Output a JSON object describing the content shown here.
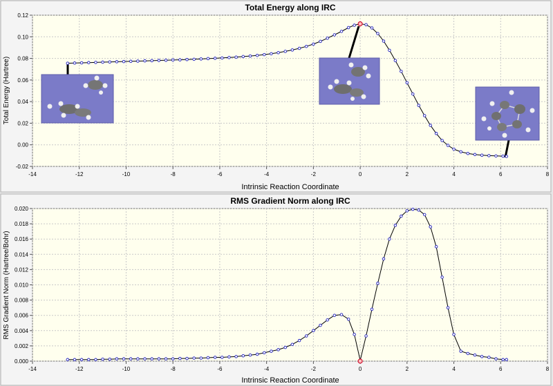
{
  "chart_data": [
    {
      "type": "line",
      "title": "Total Energy along IRC",
      "xlabel": "Intrinsic Reaction Coordinate",
      "ylabel": "Total Energy (Hartree)",
      "xlim": [
        -14,
        8
      ],
      "ylim": [
        -0.02,
        0.12
      ],
      "xticks": [
        -14,
        -12,
        -10,
        -8,
        -6,
        -4,
        -2,
        0,
        2,
        4,
        6,
        8
      ],
      "yticks": [
        -0.02,
        0.0,
        0.02,
        0.04,
        0.06,
        0.08,
        0.1,
        0.12
      ],
      "ytick_labels": [
        "-0.02",
        "0.00",
        "0.02",
        "0.04",
        "0.06",
        "0.08",
        "0.10",
        "0.12"
      ],
      "xtick_labels": [
        "-14",
        "-12",
        "-10",
        "-8",
        "-6",
        "-4",
        "-2",
        "0",
        "2",
        "4",
        "6",
        "8"
      ],
      "grid": true,
      "highlight": {
        "x": 0,
        "y": 0.112
      },
      "series": [
        {
          "x": [
            -12.5,
            -12.2,
            -11.9,
            -11.6,
            -11.3,
            -11.0,
            -10.7,
            -10.4,
            -10.1,
            -9.8,
            -9.5,
            -9.2,
            -8.9,
            -8.6,
            -8.3,
            -8.0,
            -7.7,
            -7.4,
            -7.1,
            -6.8,
            -6.5,
            -6.2,
            -5.9,
            -5.6,
            -5.3,
            -5.0,
            -4.7,
            -4.4,
            -4.1,
            -3.8,
            -3.5,
            -3.2,
            -2.9,
            -2.6,
            -2.3,
            -2.0,
            -1.7,
            -1.4,
            -1.1,
            -0.8,
            -0.5,
            -0.25,
            0,
            0.25,
            0.5,
            0.75,
            1.0,
            1.25,
            1.5,
            1.75,
            2.0,
            2.25,
            2.5,
            2.75,
            3.0,
            3.25,
            3.5,
            3.75,
            4.0,
            4.3,
            4.6,
            4.9,
            5.2,
            5.5,
            5.8,
            6.1,
            6.25
          ],
          "y": [
            0.0755,
            0.0757,
            0.0759,
            0.0761,
            0.0763,
            0.0765,
            0.0767,
            0.0769,
            0.0771,
            0.0773,
            0.0775,
            0.0777,
            0.0779,
            0.0781,
            0.0783,
            0.0785,
            0.0787,
            0.0789,
            0.0792,
            0.0795,
            0.0798,
            0.0801,
            0.0804,
            0.0808,
            0.0812,
            0.0817,
            0.0822,
            0.0828,
            0.0835,
            0.0843,
            0.0853,
            0.0865,
            0.0878,
            0.0893,
            0.0911,
            0.0932,
            0.0958,
            0.0987,
            0.1018,
            0.105,
            0.1085,
            0.1107,
            0.112,
            0.1112,
            0.1082,
            0.103,
            0.096,
            0.0875,
            0.078,
            0.068,
            0.0575,
            0.047,
            0.0365,
            0.027,
            0.018,
            0.0105,
            0.004,
            -0.0005,
            -0.004,
            -0.0065,
            -0.008,
            -0.009,
            -0.0096,
            -0.01,
            -0.0103,
            -0.0105,
            -0.0107
          ]
        }
      ]
    },
    {
      "type": "line",
      "title": "RMS Gradient Norm along IRC",
      "xlabel": "Intrinsic Reaction Coordinate",
      "ylabel": "RMS Gradient Norm (Hartree/Bohr)",
      "xlim": [
        -14,
        8
      ],
      "ylim": [
        0,
        0.02
      ],
      "xticks": [
        -14,
        -12,
        -10,
        -8,
        -6,
        -4,
        -2,
        0,
        2,
        4,
        6,
        8
      ],
      "yticks": [
        0.0,
        0.002,
        0.004,
        0.006,
        0.008,
        0.01,
        0.012,
        0.014,
        0.016,
        0.018,
        0.02
      ],
      "ytick_labels": [
        "0.000",
        "0.002",
        "0.004",
        "0.006",
        "0.008",
        "0.010",
        "0.012",
        "0.014",
        "0.016",
        "0.018",
        "0.020"
      ],
      "xtick_labels": [
        "-14",
        "-12",
        "-10",
        "-8",
        "-6",
        "-4",
        "-2",
        "0",
        "2",
        "4",
        "6",
        "8"
      ],
      "grid": true,
      "highlight": {
        "x": 0,
        "y": 0.0
      },
      "series": [
        {
          "x": [
            -12.5,
            -12.2,
            -11.9,
            -11.6,
            -11.3,
            -11.0,
            -10.7,
            -10.4,
            -10.1,
            -9.8,
            -9.5,
            -9.2,
            -8.9,
            -8.6,
            -8.3,
            -8.0,
            -7.7,
            -7.4,
            -7.1,
            -6.8,
            -6.5,
            -6.2,
            -5.9,
            -5.6,
            -5.3,
            -5.0,
            -4.7,
            -4.4,
            -4.1,
            -3.8,
            -3.5,
            -3.2,
            -2.9,
            -2.6,
            -2.3,
            -2.0,
            -1.7,
            -1.4,
            -1.1,
            -0.8,
            -0.5,
            -0.25,
            0,
            0.25,
            0.5,
            0.75,
            1.0,
            1.25,
            1.5,
            1.75,
            2.0,
            2.25,
            2.5,
            2.75,
            3.0,
            3.25,
            3.5,
            3.75,
            4.0,
            4.3,
            4.6,
            4.9,
            5.2,
            5.5,
            5.8,
            6.1,
            6.25
          ],
          "y": [
            0.0002,
            0.0002,
            0.0002,
            0.0002,
            0.0002,
            0.00025,
            0.00025,
            0.0003,
            0.0003,
            0.0003,
            0.0003,
            0.0003,
            0.0003,
            0.0003,
            0.0003,
            0.0003,
            0.00035,
            0.00035,
            0.0004,
            0.0004,
            0.00045,
            0.0005,
            0.0005,
            0.00055,
            0.0006,
            0.0007,
            0.0008,
            0.0009,
            0.0011,
            0.0013,
            0.0015,
            0.0018,
            0.0022,
            0.0027,
            0.0033,
            0.004,
            0.0047,
            0.0054,
            0.006,
            0.0061,
            0.0055,
            0.0035,
            0.0001,
            0.0033,
            0.0068,
            0.0102,
            0.0134,
            0.016,
            0.0178,
            0.019,
            0.0197,
            0.0199,
            0.0198,
            0.0192,
            0.0176,
            0.015,
            0.011,
            0.007,
            0.0035,
            0.0013,
            0.001,
            0.0008,
            0.0006,
            0.0005,
            0.0003,
            0.0002,
            0.0002
          ]
        }
      ]
    }
  ]
}
